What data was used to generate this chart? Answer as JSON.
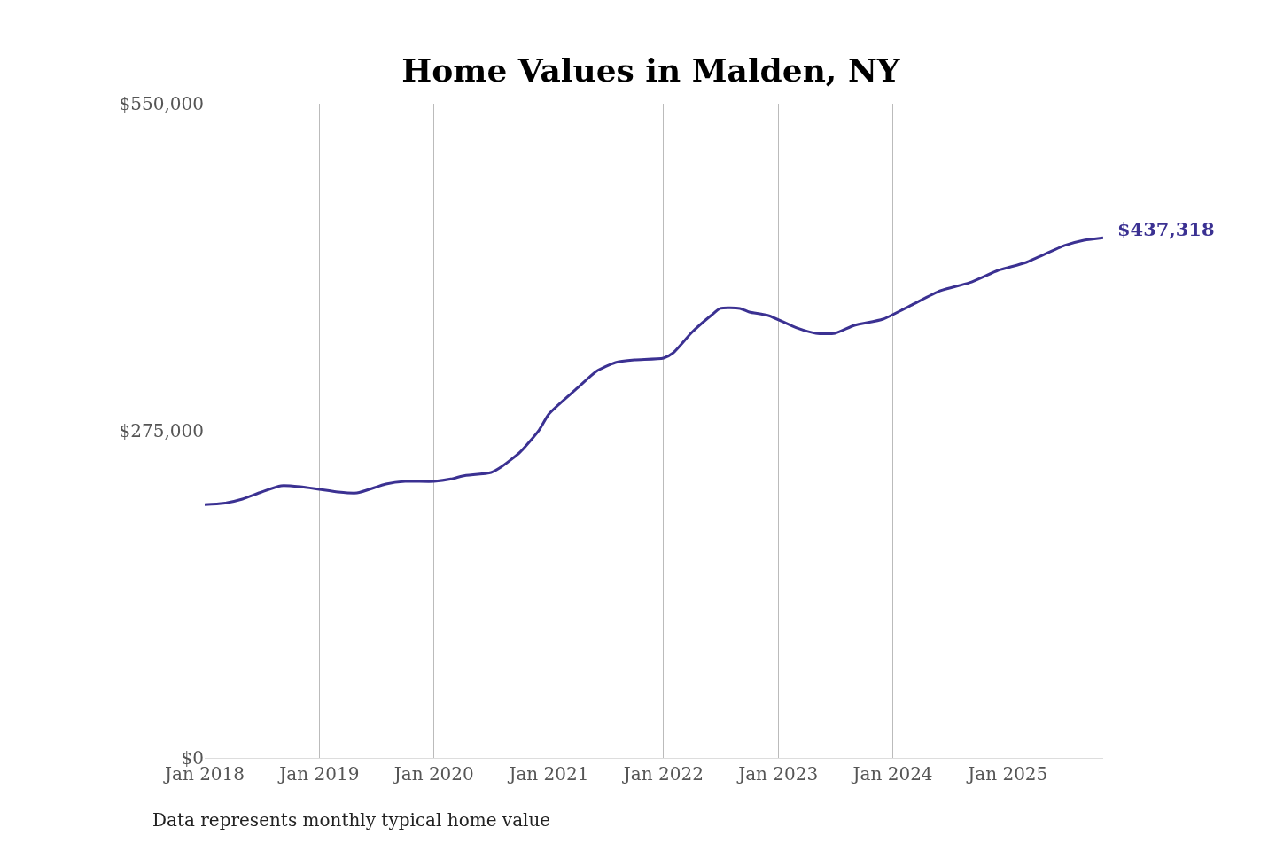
{
  "chart_data": {
    "type": "line",
    "title": "Home Values in Malden, NY",
    "x": [
      "2018-01",
      "2018-03",
      "2018-05",
      "2018-07",
      "2018-09",
      "2018-11",
      "2019-01",
      "2019-03",
      "2019-05",
      "2019-08",
      "2019-10",
      "2020-01",
      "2020-03",
      "2020-04",
      "2020-07",
      "2020-08",
      "2020-10",
      "2020-12",
      "2021-01",
      "2021-04",
      "2021-06",
      "2021-08",
      "2021-10",
      "2022-01",
      "2022-02",
      "2022-04",
      "2022-06",
      "2022-07",
      "2022-09",
      "2022-10",
      "2022-12",
      "2023-03",
      "2023-05",
      "2023-07",
      "2023-09",
      "2023-12",
      "2024-03",
      "2024-06",
      "2024-09",
      "2024-12",
      "2025-01",
      "2025-03",
      "2025-07",
      "2025-09",
      "2025-11"
    ],
    "series": [
      {
        "color": "#3b3192",
        "values": [
          213000,
          214000,
          217600,
          223600,
          228800,
          228000,
          225800,
          223600,
          222800,
          230300,
          232500,
          232500,
          234800,
          237000,
          240000,
          244400,
          257000,
          275700,
          289200,
          310800,
          325000,
          332400,
          334600,
          336100,
          340600,
          357700,
          371900,
          377900,
          377900,
          374900,
          371900,
          361500,
          357000,
          357000,
          363700,
          368900,
          380800,
          392800,
          399500,
          409900,
          412200,
          416600,
          430800,
          435200,
          437318
        ]
      }
    ],
    "xticks": [
      {
        "value": "2018-01",
        "label": "Jan 2018"
      },
      {
        "value": "2019-01",
        "label": "Jan 2019"
      },
      {
        "value": "2020-01",
        "label": "Jan 2020"
      },
      {
        "value": "2021-01",
        "label": "Jan 2021"
      },
      {
        "value": "2022-01",
        "label": "Jan 2022"
      },
      {
        "value": "2023-01",
        "label": "Jan 2023"
      },
      {
        "value": "2024-01",
        "label": "Jan 2024"
      },
      {
        "value": "2025-01",
        "label": "Jan 2025"
      }
    ],
    "xlim": [
      "2018-01-01",
      "2025-11-01"
    ],
    "ylim": [
      0,
      550000
    ],
    "yticks": [
      {
        "value": 0,
        "label": "$0"
      },
      {
        "value": 275000,
        "label": "$275,000"
      },
      {
        "value": 550000,
        "label": "$550,000"
      }
    ],
    "grid": "x",
    "marker": "none",
    "line_style": "solid",
    "annotations": [
      {
        "text": "$437,318",
        "x": "2025-11",
        "y": 437318
      },
      "Data represents monthly typical home value"
    ]
  }
}
